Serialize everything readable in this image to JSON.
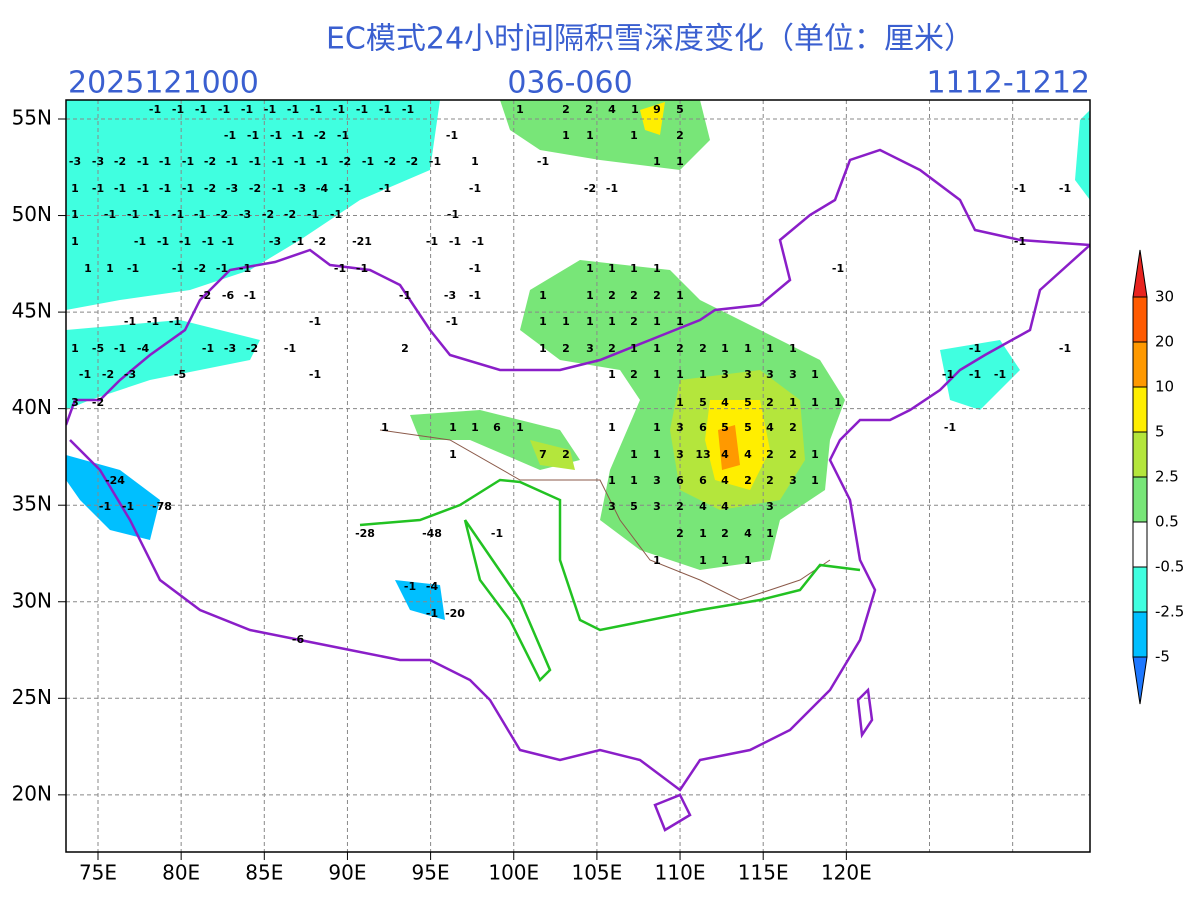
{
  "title": "EC模式24小时间隔积雪深度变化（单位：厘米）",
  "header": {
    "init_time": "2025121000",
    "forecast_hours": "036-060",
    "valid_dates": "1112-1212"
  },
  "x_axis": [
    "75E",
    "80E",
    "85E",
    "90E",
    "95E",
    "100E",
    "105E",
    "110E",
    "115E",
    "120E"
  ],
  "y_axis": [
    "55N",
    "50N",
    "45N",
    "40N",
    "35N",
    "30N",
    "25N",
    "20N"
  ],
  "colorbar": {
    "levels": [
      30,
      20,
      10,
      5,
      2.5,
      0.5,
      -0.5,
      -2.5,
      -5
    ],
    "colors": [
      "#e8231f",
      "#ff5a00",
      "#ff9900",
      "#ffee00",
      "#b4e63c",
      "#78e678",
      "#ffffff",
      "#40ffe0",
      "#00bfff",
      "#1e78ff"
    ]
  },
  "map_values": [
    [
      -1,
      -1,
      -1,
      -1,
      -1,
      -1,
      -1,
      -1,
      -1,
      -1,
      -1,
      -1,
      1,
      2,
      2,
      4,
      1,
      9,
      5
    ],
    [
      -1,
      -1,
      -1,
      -1,
      -2,
      -1,
      -1,
      1,
      1,
      1,
      2
    ],
    [
      -3,
      -3,
      -2,
      -1,
      -1,
      -1,
      -2,
      -1,
      -1,
      -1,
      -1,
      -1,
      -2,
      -1,
      -2,
      -2,
      -1,
      1,
      -1,
      1,
      1
    ],
    [
      1,
      -1,
      -1,
      -1,
      -1,
      -1,
      -2,
      -3,
      -2,
      -1,
      -3,
      -4,
      -1,
      -1,
      -1,
      -2,
      -1,
      -1,
      -1
    ],
    [
      1,
      -1,
      -1,
      -1,
      -1,
      -1,
      -2,
      -3,
      -2,
      -2,
      -1,
      -1,
      -1
    ],
    [
      1,
      -1,
      -1,
      -1,
      -1,
      -1,
      -3,
      -1,
      -2,
      -21,
      -1,
      -1,
      -1,
      -1
    ],
    [
      1,
      1,
      -1,
      -1,
      -2,
      -1,
      -1,
      -1,
      -1,
      -1,
      1,
      1,
      1,
      1,
      -1
    ],
    [
      -2,
      -6,
      -1,
      -1,
      -3,
      -1,
      1,
      1,
      2,
      2,
      2,
      1
    ],
    [
      -1,
      -1,
      -1,
      -1,
      -1,
      1,
      1,
      1,
      1,
      2,
      1,
      1
    ],
    [
      1,
      -5,
      -1,
      -4,
      -1,
      -3,
      -2,
      -1,
      2,
      1,
      2,
      3,
      2,
      1,
      1,
      2,
      2,
      1,
      1,
      1,
      1,
      -1,
      -1
    ],
    [
      -1,
      -2,
      -3,
      -5,
      -1,
      1,
      2,
      1,
      1,
      1,
      3,
      3,
      3,
      3,
      1,
      -1,
      -1,
      -1
    ],
    [
      3,
      -2,
      1,
      5,
      4,
      5,
      2,
      1,
      1,
      1
    ],
    [
      1,
      1,
      1,
      6,
      1,
      1,
      1,
      3,
      6,
      5,
      5,
      4,
      2,
      -1
    ],
    [
      1,
      7,
      2,
      1,
      1,
      3,
      13,
      4,
      4,
      2,
      2,
      1
    ],
    [
      -24,
      1,
      1,
      3,
      6,
      6,
      4,
      2,
      2,
      3,
      1
    ],
    [
      -1,
      -1,
      -78,
      3,
      5,
      3,
      2,
      4,
      4,
      3
    ],
    [
      -28,
      -48,
      -1,
      2,
      1,
      2,
      4,
      1
    ],
    [
      1,
      1,
      1,
      1
    ],
    [
      -1,
      -4
    ],
    [
      -1,
      -20
    ],
    [
      -6
    ]
  ]
}
